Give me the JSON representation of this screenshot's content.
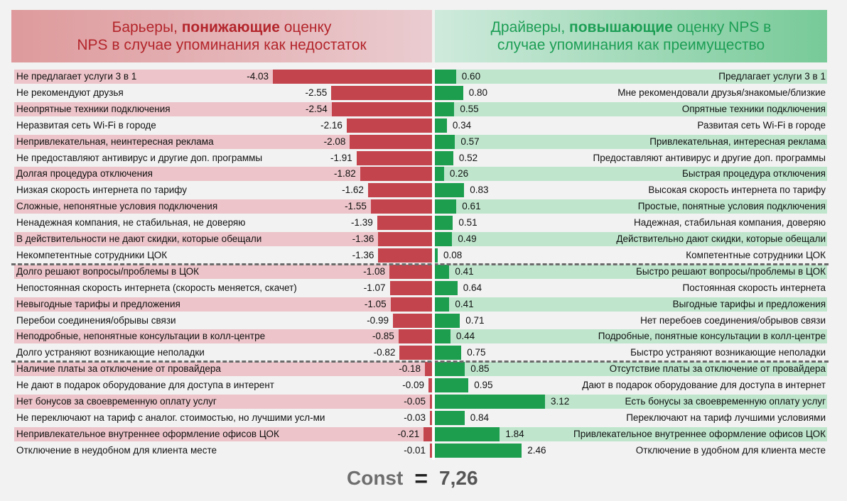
{
  "header": {
    "left": {
      "before": "Барьеры, ",
      "bold": "понижающие",
      "after": " оценку",
      "line2": "NPS в случае упоминания как недостаток"
    },
    "right": {
      "before": "Драйверы, ",
      "bold": "повышающие",
      "after": " оценку NPS в",
      "line2": "случае упоминания как преимущество"
    }
  },
  "colors": {
    "negative": "#c3444d",
    "positive": "#1d9e4f",
    "negative_bg": "#ecc4c9",
    "positive_bg": "#bfe6cd"
  },
  "chart_data": {
    "type": "bar",
    "series": [
      {
        "name": "Барьеры",
        "direction": "negative"
      },
      {
        "name": "Драйверы",
        "direction": "positive"
      }
    ],
    "group_breaks_after": [
      11,
      17
    ],
    "rows": [
      {
        "barrier": "Не предлагает услуги 3 в 1",
        "barrier_value": -4.03,
        "driver": "Предлагает услуги 3 в 1",
        "driver_value": 0.6
      },
      {
        "barrier": "Не рекомендуют друзья",
        "barrier_value": -2.55,
        "driver": "Мне рекомендовали друзья/знакомые/близкие",
        "driver_value": 0.8
      },
      {
        "barrier": "Неопрятные техники подключения",
        "barrier_value": -2.54,
        "driver": "Опрятные техники подключения",
        "driver_value": 0.55
      },
      {
        "barrier": "Неразвитая сеть Wi-Fi в городе",
        "barrier_value": -2.16,
        "driver": "Развитая сеть Wi-Fi в городе",
        "driver_value": 0.34
      },
      {
        "barrier": "Непривлекательная, неинтересная реклама",
        "barrier_value": -2.08,
        "driver": "Привлекательная, интересная реклама",
        "driver_value": 0.57
      },
      {
        "barrier": "Не предоставляют антивирус и другие доп. программы",
        "barrier_value": -1.91,
        "driver": "Предоставляют антивирус и другие доп. программы",
        "driver_value": 0.52
      },
      {
        "barrier": "Долгая процедура отключения",
        "barrier_value": -1.82,
        "driver": "Быстрая процедура отключения",
        "driver_value": 0.26
      },
      {
        "barrier": "Низкая скорость интернета по тарифу",
        "barrier_value": -1.62,
        "driver": "Высокая скорость интернета по тарифу",
        "driver_value": 0.83
      },
      {
        "barrier": "Сложные, непонятные условия подключения",
        "barrier_value": -1.55,
        "driver": "Простые, понятные условия подключения",
        "driver_value": 0.61
      },
      {
        "barrier": "Ненадежная компания, не стабильная, не доверяю",
        "barrier_value": -1.39,
        "driver": "Надежная, стабильная компания, доверяю",
        "driver_value": 0.51
      },
      {
        "barrier": "В действительности не дают скидки, которые обещали",
        "barrier_value": -1.36,
        "driver": "Действительно дают скидки, которые обещали",
        "driver_value": 0.49
      },
      {
        "barrier": "Некомпетентные сотрудники ЦОК",
        "barrier_value": -1.36,
        "driver": "Компетентные сотрудники ЦОК",
        "driver_value": 0.08
      },
      {
        "barrier": "Долго решают вопросы/проблемы в ЦОК",
        "barrier_value": -1.08,
        "driver": "Быстро решают вопросы/проблемы в ЦОК",
        "driver_value": 0.41
      },
      {
        "barrier": "Непостоянная скорость интернета (скорость меняется, скачет)",
        "barrier_value": -1.07,
        "driver": "Постоянная скорость интернета",
        "driver_value": 0.64
      },
      {
        "barrier": "Невыгодные тарифы и предложения",
        "barrier_value": -1.05,
        "driver": "Выгодные тарифы и предложения",
        "driver_value": 0.41
      },
      {
        "barrier": "Перебои соединения/обрывы связи",
        "barrier_value": -0.99,
        "driver": "Нет перебоев соединения/обрывов связи",
        "driver_value": 0.71
      },
      {
        "barrier": "Неподробные, непонятные консультации в колл-центре",
        "barrier_value": -0.85,
        "driver": "Подробные, понятные консультации в колл-центре",
        "driver_value": 0.44
      },
      {
        "barrier": "Долго устраняют возникающие неполадки",
        "barrier_value": -0.82,
        "driver": "Быстро устраняют возникающие неполадки",
        "driver_value": 0.75
      },
      {
        "barrier": "Наличие платы за отключение от провайдера",
        "barrier_value": -0.18,
        "driver": "Отсутствие платы за отключение от провайдера",
        "driver_value": 0.85
      },
      {
        "barrier": "Не дают в подарок оборудование для доступа в интерент",
        "barrier_value": -0.09,
        "driver": "Дают в подарок оборудование для доступа в интернет",
        "driver_value": 0.95
      },
      {
        "barrier": "Нет бонусов за своевременную оплату услуг",
        "barrier_value": -0.05,
        "driver": "Есть бонусы за своевременную оплату услуг",
        "driver_value": 3.12
      },
      {
        "barrier": "Не переключают на тариф с аналог. стоимостью, но лучшими усл-ми",
        "barrier_value": -0.03,
        "driver": "Переключают на тариф лучшими условиями",
        "driver_value": 0.84
      },
      {
        "barrier": "Непривлекательное внутреннее оформление офисов ЦОК",
        "barrier_value": -0.21,
        "driver": "Привлекательное внутреннее оформление офисов ЦОК",
        "driver_value": 1.84
      },
      {
        "barrier": "Отключение в неудобном для клиента месте",
        "barrier_value": -0.01,
        "driver": "Отключение в удобном для клиента месте",
        "driver_value": 2.46
      }
    ]
  },
  "footer": {
    "const_label": "Const",
    "const_eq": "=",
    "const_value": "7,26"
  }
}
